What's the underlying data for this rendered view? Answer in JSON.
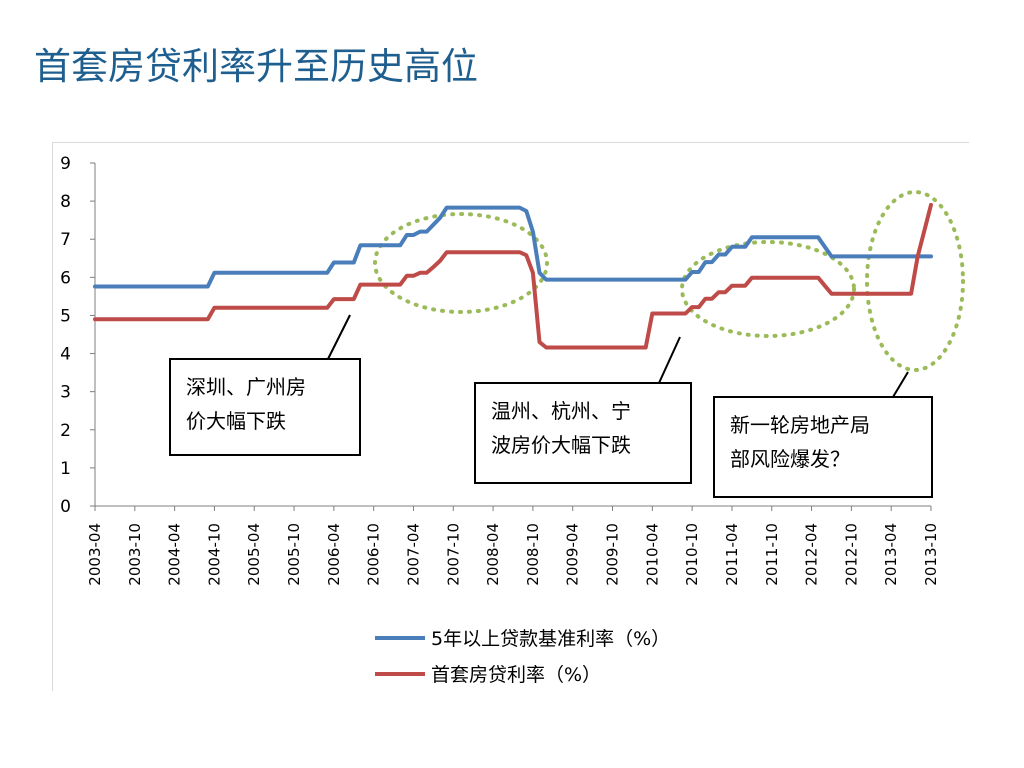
{
  "page": {
    "title": "首套房贷利率升至历史高位"
  },
  "chart_data": {
    "type": "line",
    "title": "",
    "xlabel": "",
    "ylabel": "",
    "ylim": [
      0,
      9
    ],
    "yticks": [
      0,
      1,
      2,
      3,
      4,
      5,
      6,
      7,
      8,
      9
    ],
    "xlim": [
      "2003-04",
      "2013-10"
    ],
    "x_tick_labels": [
      "2003-04",
      "2003-10",
      "2004-04",
      "2004-10",
      "2005-04",
      "2005-10",
      "2006-04",
      "2006-10",
      "2007-04",
      "2007-10",
      "2008-04",
      "2008-10",
      "2009-04",
      "2009-10",
      "2010-04",
      "2010-10",
      "2011-04",
      "2011-10",
      "2012-04",
      "2012-10",
      "2013-04",
      "2013-10"
    ],
    "grid": false,
    "legend_position": "bottom",
    "series": [
      {
        "name": "5年以上贷款基准利率（%）",
        "color": "#4a7ebb",
        "points": [
          [
            "2003-04",
            5.76
          ],
          [
            "2004-09",
            5.76
          ],
          [
            "2004-10",
            6.12
          ],
          [
            "2006-03",
            6.12
          ],
          [
            "2006-04",
            6.39
          ],
          [
            "2006-07",
            6.39
          ],
          [
            "2006-08",
            6.84
          ],
          [
            "2007-02",
            6.84
          ],
          [
            "2007-03",
            7.11
          ],
          [
            "2007-04",
            7.11
          ],
          [
            "2007-05",
            7.2
          ],
          [
            "2007-06",
            7.2
          ],
          [
            "2007-07",
            7.38
          ],
          [
            "2007-08",
            7.56
          ],
          [
            "2007-09",
            7.83
          ],
          [
            "2008-08",
            7.83
          ],
          [
            "2008-09",
            7.74
          ],
          [
            "2008-10",
            7.2
          ],
          [
            "2008-11",
            6.12
          ],
          [
            "2008-12",
            5.94
          ],
          [
            "2010-09",
            5.94
          ],
          [
            "2010-10",
            6.14
          ],
          [
            "2010-11",
            6.14
          ],
          [
            "2010-12",
            6.4
          ],
          [
            "2011-01",
            6.4
          ],
          [
            "2011-02",
            6.6
          ],
          [
            "2011-03",
            6.6
          ],
          [
            "2011-04",
            6.8
          ],
          [
            "2011-06",
            6.8
          ],
          [
            "2011-07",
            7.05
          ],
          [
            "2012-05",
            7.05
          ],
          [
            "2012-06",
            6.8
          ],
          [
            "2012-07",
            6.55
          ],
          [
            "2013-10",
            6.55
          ]
        ]
      },
      {
        "name": "首套房贷利率（%）",
        "color": "#be4b48",
        "points": [
          [
            "2003-04",
            4.9
          ],
          [
            "2004-09",
            4.9
          ],
          [
            "2004-10",
            5.2
          ],
          [
            "2006-03",
            5.2
          ],
          [
            "2006-04",
            5.43
          ],
          [
            "2006-07",
            5.43
          ],
          [
            "2006-08",
            5.81
          ],
          [
            "2007-02",
            5.81
          ],
          [
            "2007-03",
            6.04
          ],
          [
            "2007-04",
            6.04
          ],
          [
            "2007-05",
            6.12
          ],
          [
            "2007-06",
            6.12
          ],
          [
            "2007-07",
            6.27
          ],
          [
            "2007-08",
            6.43
          ],
          [
            "2007-09",
            6.66
          ],
          [
            "2008-08",
            6.66
          ],
          [
            "2008-09",
            6.58
          ],
          [
            "2008-10",
            6.12
          ],
          [
            "2008-11",
            4.3
          ],
          [
            "2008-12",
            4.16
          ],
          [
            "2010-03",
            4.16
          ],
          [
            "2010-04",
            5.05
          ],
          [
            "2010-09",
            5.05
          ],
          [
            "2010-10",
            5.22
          ],
          [
            "2010-11",
            5.22
          ],
          [
            "2010-12",
            5.44
          ],
          [
            "2011-01",
            5.44
          ],
          [
            "2011-02",
            5.61
          ],
          [
            "2011-03",
            5.61
          ],
          [
            "2011-04",
            5.78
          ],
          [
            "2011-06",
            5.78
          ],
          [
            "2011-07",
            5.99
          ],
          [
            "2012-05",
            5.99
          ],
          [
            "2012-06",
            5.78
          ],
          [
            "2012-07",
            5.57
          ],
          [
            "2013-07",
            5.57
          ],
          [
            "2013-08",
            6.55
          ],
          [
            "2013-10",
            7.9
          ]
        ]
      }
    ],
    "annotations": [
      {
        "lines": [
          "深圳、广州房",
          "价大幅下跌"
        ]
      },
      {
        "lines": [
          "温州、杭州、宁",
          "波房价大幅下跌"
        ]
      },
      {
        "lines": [
          "新一轮房地产局",
          "部风险爆发？"
        ]
      }
    ]
  }
}
